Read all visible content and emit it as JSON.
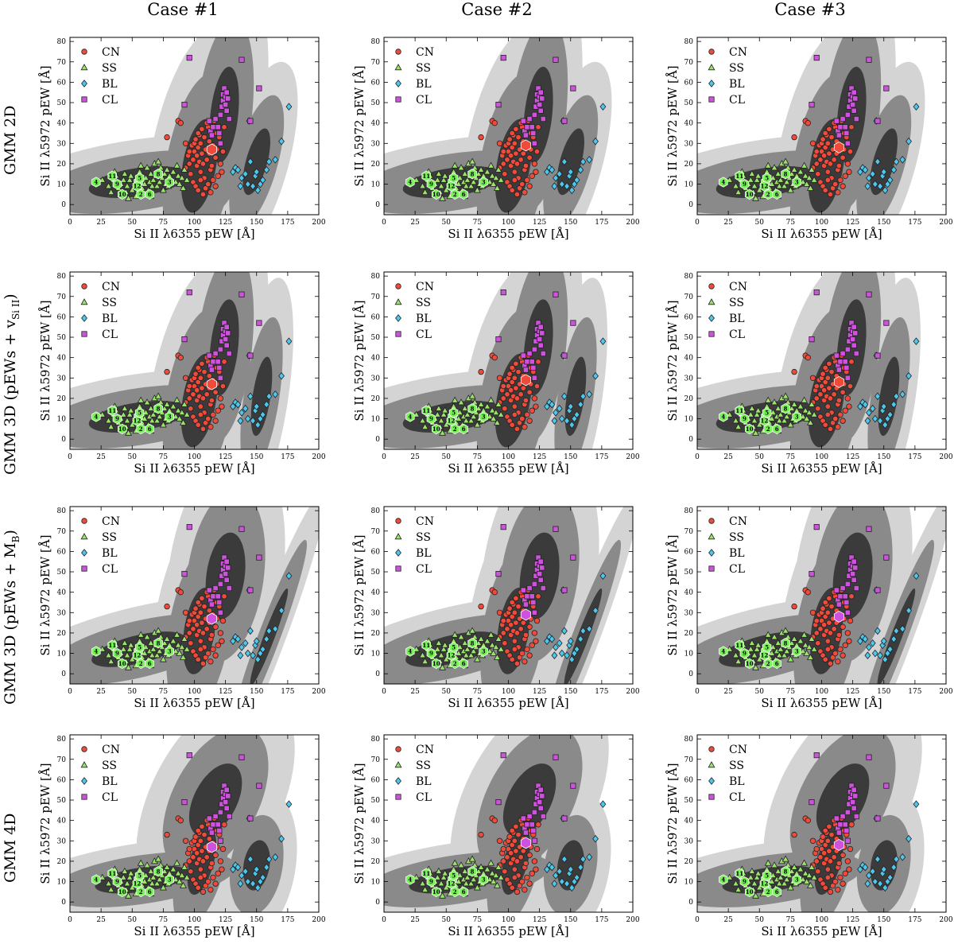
{
  "column_titles": [
    "Case #1",
    "Case #2",
    "Case #3"
  ],
  "row_titles": [
    {
      "main": "GMM 2D",
      "sub": ""
    },
    {
      "main": "GMM 3D (pEWs + v",
      "sub": "Si II",
      "close": ")"
    },
    {
      "main": "GMM 3D (pEWs + M",
      "sub": "B",
      "close": ")"
    },
    {
      "main": "GMM 4D",
      "sub": ""
    }
  ],
  "legend": [
    {
      "label": "CN",
      "color": "#f04a3a",
      "marker": "circle"
    },
    {
      "label": "SS",
      "color": "#9be36b",
      "marker": "triangle"
    },
    {
      "label": "BL",
      "color": "#4cc8ef",
      "marker": "diamond"
    },
    {
      "label": "CL",
      "color": "#cf52df",
      "marker": "square"
    }
  ],
  "chart_data": {
    "type": "scatter",
    "layout": "4x3 grid of panels",
    "xlabel": "Si II λ6355 pEW [Å]",
    "ylabel": "Si II λ5972 pEW [Å]",
    "xlim": [
      0,
      200
    ],
    "ylim": [
      -5,
      82
    ],
    "xticks": [
      0,
      25,
      50,
      75,
      100,
      125,
      150,
      175,
      200
    ],
    "yticks": [
      0,
      10,
      20,
      30,
      40,
      50,
      60,
      70,
      80
    ],
    "legend_position": "upper-left",
    "numbered_points": [
      {
        "n": "4",
        "x": 21,
        "y": 11
      },
      {
        "n": "11",
        "x": 34,
        "y": 14
      },
      {
        "n": "9",
        "x": 38,
        "y": 10
      },
      {
        "n": "10",
        "x": 42,
        "y": 5
      },
      {
        "n": "7",
        "x": 55,
        "y": 11
      },
      {
        "n": "12",
        "x": 54,
        "y": 9
      },
      {
        "n": "5",
        "x": 56,
        "y": 13
      },
      {
        "n": "2",
        "x": 57,
        "y": 5
      },
      {
        "n": "6",
        "x": 64,
        "y": 5
      },
      {
        "n": "8",
        "x": 71,
        "y": 15
      },
      {
        "n": "3",
        "x": 80,
        "y": 11
      }
    ],
    "series": [
      {
        "name": "CN",
        "points": [
          [
            78,
            33
          ],
          [
            87,
            41
          ],
          [
            89,
            40
          ],
          [
            93,
            18
          ],
          [
            95,
            24
          ],
          [
            96,
            20
          ],
          [
            98,
            29
          ],
          [
            99,
            22
          ],
          [
            100,
            30
          ],
          [
            100,
            26
          ],
          [
            101,
            32
          ],
          [
            102,
            24
          ],
          [
            102,
            19
          ],
          [
            103,
            28
          ],
          [
            104,
            34
          ],
          [
            104,
            21
          ],
          [
            105,
            16
          ],
          [
            105,
            30
          ],
          [
            106,
            25
          ],
          [
            106,
            37
          ],
          [
            107,
            20
          ],
          [
            108,
            33
          ],
          [
            108,
            13
          ],
          [
            109,
            27
          ],
          [
            110,
            22
          ],
          [
            111,
            38
          ],
          [
            112,
            31
          ],
          [
            112,
            25
          ],
          [
            113,
            17
          ],
          [
            114,
            35
          ],
          [
            115,
            29
          ],
          [
            116,
            41
          ],
          [
            117,
            23
          ],
          [
            118,
            27
          ],
          [
            120,
            33
          ],
          [
            121,
            20
          ],
          [
            122,
            16
          ],
          [
            123,
            26
          ],
          [
            97,
            15
          ],
          [
            99,
            11
          ],
          [
            101,
            9
          ],
          [
            103,
            7
          ],
          [
            105,
            12
          ],
          [
            107,
            5
          ],
          [
            109,
            8
          ],
          [
            111,
            10
          ],
          [
            113,
            6
          ],
          [
            115,
            12
          ],
          [
            117,
            9
          ],
          [
            119,
            14
          ],
          [
            96,
            26
          ],
          [
            103,
            35
          ],
          [
            110,
            40
          ],
          [
            118,
            35
          ],
          [
            124,
            38
          ],
          [
            114,
            19
          ],
          [
            93,
            30
          ]
        ]
      },
      {
        "name": "SS",
        "points": [
          [
            26,
            12
          ],
          [
            31,
            9
          ],
          [
            33,
            6
          ],
          [
            35,
            12
          ],
          [
            37,
            14
          ],
          [
            39,
            8
          ],
          [
            41,
            10
          ],
          [
            43,
            12
          ],
          [
            45,
            6
          ],
          [
            46,
            9
          ],
          [
            48,
            12
          ],
          [
            49,
            14
          ],
          [
            50,
            7
          ],
          [
            52,
            10
          ],
          [
            53,
            12
          ],
          [
            56,
            16
          ],
          [
            58,
            8
          ],
          [
            59,
            12
          ],
          [
            60,
            10
          ],
          [
            61,
            13
          ],
          [
            62,
            18
          ],
          [
            63,
            7
          ],
          [
            64,
            11
          ],
          [
            65,
            15
          ],
          [
            66,
            9
          ],
          [
            67,
            12
          ],
          [
            68,
            20
          ],
          [
            69,
            14
          ],
          [
            70,
            9
          ],
          [
            72,
            11
          ],
          [
            73,
            18
          ],
          [
            74,
            13
          ],
          [
            75,
            7
          ],
          [
            76,
            15
          ],
          [
            77,
            10
          ],
          [
            78,
            17
          ],
          [
            79,
            9
          ],
          [
            80,
            14
          ],
          [
            82,
            12
          ],
          [
            83,
            16
          ],
          [
            85,
            11
          ],
          [
            86,
            19
          ],
          [
            87,
            14
          ],
          [
            88,
            10
          ],
          [
            90,
            13
          ],
          [
            91,
            8
          ],
          [
            92,
            17
          ],
          [
            94,
            12
          ],
          [
            44,
            15
          ],
          [
            36,
            16
          ],
          [
            57,
            19
          ],
          [
            71,
            21
          ],
          [
            47,
            3
          ],
          [
            65,
            4
          ],
          [
            53,
            4
          ]
        ]
      },
      {
        "name": "BL",
        "points": [
          [
            131,
            16
          ],
          [
            133,
            18
          ],
          [
            135,
            17
          ],
          [
            138,
            13
          ],
          [
            141,
            15
          ],
          [
            143,
            10
          ],
          [
            145,
            21
          ],
          [
            147,
            9
          ],
          [
            149,
            14
          ],
          [
            151,
            7
          ],
          [
            153,
            10
          ],
          [
            155,
            12
          ],
          [
            158,
            17
          ],
          [
            160,
            21
          ],
          [
            165,
            22
          ],
          [
            170,
            31
          ],
          [
            176,
            48
          ],
          [
            137,
            9
          ],
          [
            150,
            16
          ],
          [
            144,
            41
          ]
        ]
      },
      {
        "name": "CL",
        "points": [
          [
            92,
            49
          ],
          [
            96,
            72
          ],
          [
            112,
            41
          ],
          [
            113,
            36
          ],
          [
            114,
            34
          ],
          [
            115,
            38
          ],
          [
            117,
            42
          ],
          [
            119,
            38
          ],
          [
            120,
            35
          ],
          [
            121,
            44
          ],
          [
            122,
            48
          ],
          [
            123,
            51
          ],
          [
            123,
            54
          ],
          [
            124,
            57
          ],
          [
            125,
            53
          ],
          [
            125,
            49
          ],
          [
            126,
            55
          ],
          [
            127,
            52
          ],
          [
            126,
            46
          ],
          [
            128,
            42
          ],
          [
            138,
            71
          ],
          [
            145,
            41
          ],
          [
            152,
            57
          ],
          [
            121,
            30
          ]
        ]
      }
    ],
    "panels": [
      {
        "row": 0,
        "col": 0,
        "highlight": [
          114,
          27
        ],
        "ellipses": [
          {
            "cx": 55,
            "cy": 11,
            "rx": 40,
            "ry": 7,
            "angle": 5
          },
          {
            "cx": 104,
            "cy": 19,
            "rx": 24,
            "ry": 13,
            "angle": 70
          },
          {
            "cx": 124,
            "cy": 44,
            "rx": 24,
            "ry": 11,
            "angle": 78
          },
          {
            "cx": 150,
            "cy": 21,
            "rx": 18,
            "ry": 8,
            "angle": 62
          }
        ]
      },
      {
        "row": 0,
        "col": 1,
        "highlight": [
          114,
          29
        ],
        "ellipses": [
          {
            "cx": 55,
            "cy": 11,
            "rx": 40,
            "ry": 7,
            "angle": 5
          },
          {
            "cx": 104,
            "cy": 19,
            "rx": 24,
            "ry": 13,
            "angle": 70
          },
          {
            "cx": 124,
            "cy": 44,
            "rx": 24,
            "ry": 11,
            "angle": 78
          },
          {
            "cx": 150,
            "cy": 21,
            "rx": 18,
            "ry": 8,
            "angle": 62
          }
        ]
      },
      {
        "row": 0,
        "col": 2,
        "highlight": [
          114,
          28
        ],
        "ellipses": [
          {
            "cx": 55,
            "cy": 11,
            "rx": 40,
            "ry": 7,
            "angle": 5
          },
          {
            "cx": 104,
            "cy": 19,
            "rx": 24,
            "ry": 13,
            "angle": 70
          },
          {
            "cx": 124,
            "cy": 44,
            "rx": 24,
            "ry": 11,
            "angle": 78
          },
          {
            "cx": 150,
            "cy": 21,
            "rx": 18,
            "ry": 8,
            "angle": 62
          }
        ]
      },
      {
        "row": 1,
        "col": 0,
        "highlight": [
          114,
          27
        ],
        "ellipses": [
          {
            "cx": 55,
            "cy": 11,
            "rx": 40,
            "ry": 7,
            "angle": 5
          },
          {
            "cx": 104,
            "cy": 19,
            "rx": 24,
            "ry": 13,
            "angle": 70
          },
          {
            "cx": 124,
            "cy": 45,
            "rx": 24,
            "ry": 11,
            "angle": 78
          },
          {
            "cx": 154,
            "cy": 21,
            "rx": 20,
            "ry": 7,
            "angle": 75
          }
        ]
      },
      {
        "row": 1,
        "col": 1,
        "highlight": [
          114,
          29
        ],
        "ellipses": [
          {
            "cx": 55,
            "cy": 11,
            "rx": 40,
            "ry": 7,
            "angle": 5
          },
          {
            "cx": 104,
            "cy": 19,
            "rx": 24,
            "ry": 13,
            "angle": 70
          },
          {
            "cx": 124,
            "cy": 45,
            "rx": 24,
            "ry": 11,
            "angle": 78
          },
          {
            "cx": 154,
            "cy": 21,
            "rx": 20,
            "ry": 7,
            "angle": 75
          }
        ]
      },
      {
        "row": 1,
        "col": 2,
        "highlight": [
          114,
          28
        ],
        "ellipses": [
          {
            "cx": 55,
            "cy": 11,
            "rx": 40,
            "ry": 7,
            "angle": 5
          },
          {
            "cx": 104,
            "cy": 19,
            "rx": 24,
            "ry": 13,
            "angle": 70
          },
          {
            "cx": 124,
            "cy": 45,
            "rx": 24,
            "ry": 11,
            "angle": 78
          },
          {
            "cx": 154,
            "cy": 21,
            "rx": 20,
            "ry": 7,
            "angle": 75
          }
        ]
      },
      {
        "row": 2,
        "col": 0,
        "highlight": [
          114,
          27
        ],
        "ellipses": [
          {
            "cx": 55,
            "cy": 12,
            "rx": 38,
            "ry": 7,
            "angle": 8
          },
          {
            "cx": 104,
            "cy": 21,
            "rx": 22,
            "ry": 12,
            "angle": 72
          },
          {
            "cx": 125,
            "cy": 48,
            "rx": 22,
            "ry": 15,
            "angle": 70
          },
          {
            "cx": 160,
            "cy": 18,
            "rx": 28,
            "ry": 4,
            "angle": 58
          }
        ]
      },
      {
        "row": 2,
        "col": 1,
        "highlight": [
          114,
          29
        ],
        "ellipses": [
          {
            "cx": 55,
            "cy": 12,
            "rx": 38,
            "ry": 7,
            "angle": 8
          },
          {
            "cx": 104,
            "cy": 21,
            "rx": 22,
            "ry": 12,
            "angle": 72
          },
          {
            "cx": 125,
            "cy": 48,
            "rx": 22,
            "ry": 15,
            "angle": 70
          },
          {
            "cx": 160,
            "cy": 18,
            "rx": 28,
            "ry": 4,
            "angle": 58
          }
        ]
      },
      {
        "row": 2,
        "col": 2,
        "highlight": [
          114,
          28
        ],
        "ellipses": [
          {
            "cx": 55,
            "cy": 12,
            "rx": 38,
            "ry": 7,
            "angle": 8
          },
          {
            "cx": 104,
            "cy": 21,
            "rx": 22,
            "ry": 12,
            "angle": 72
          },
          {
            "cx": 125,
            "cy": 48,
            "rx": 22,
            "ry": 15,
            "angle": 70
          },
          {
            "cx": 160,
            "cy": 18,
            "rx": 28,
            "ry": 4,
            "angle": 58
          }
        ]
      },
      {
        "row": 3,
        "col": 0,
        "highlight": [
          114,
          27
        ],
        "ellipses": [
          {
            "cx": 58,
            "cy": 11,
            "rx": 38,
            "ry": 6,
            "angle": 5
          },
          {
            "cx": 106,
            "cy": 20,
            "rx": 18,
            "ry": 9,
            "angle": 62
          },
          {
            "cx": 117,
            "cy": 50,
            "rx": 24,
            "ry": 14,
            "angle": 35
          },
          {
            "cx": 150,
            "cy": 18,
            "rx": 13,
            "ry": 10,
            "angle": 60
          }
        ]
      },
      {
        "row": 3,
        "col": 1,
        "highlight": [
          114,
          29
        ],
        "ellipses": [
          {
            "cx": 58,
            "cy": 11,
            "rx": 38,
            "ry": 6,
            "angle": 5
          },
          {
            "cx": 106,
            "cy": 20,
            "rx": 18,
            "ry": 9,
            "angle": 62
          },
          {
            "cx": 117,
            "cy": 50,
            "rx": 24,
            "ry": 14,
            "angle": 35
          },
          {
            "cx": 150,
            "cy": 18,
            "rx": 13,
            "ry": 10,
            "angle": 60
          }
        ]
      },
      {
        "row": 3,
        "col": 2,
        "highlight": [
          114,
          28
        ],
        "ellipses": [
          {
            "cx": 58,
            "cy": 11,
            "rx": 38,
            "ry": 6,
            "angle": 5
          },
          {
            "cx": 106,
            "cy": 20,
            "rx": 18,
            "ry": 9,
            "angle": 62
          },
          {
            "cx": 117,
            "cy": 50,
            "rx": 24,
            "ry": 14,
            "angle": 35
          },
          {
            "cx": 150,
            "cy": 18,
            "rx": 13,
            "ry": 10,
            "angle": 60
          }
        ]
      }
    ]
  }
}
